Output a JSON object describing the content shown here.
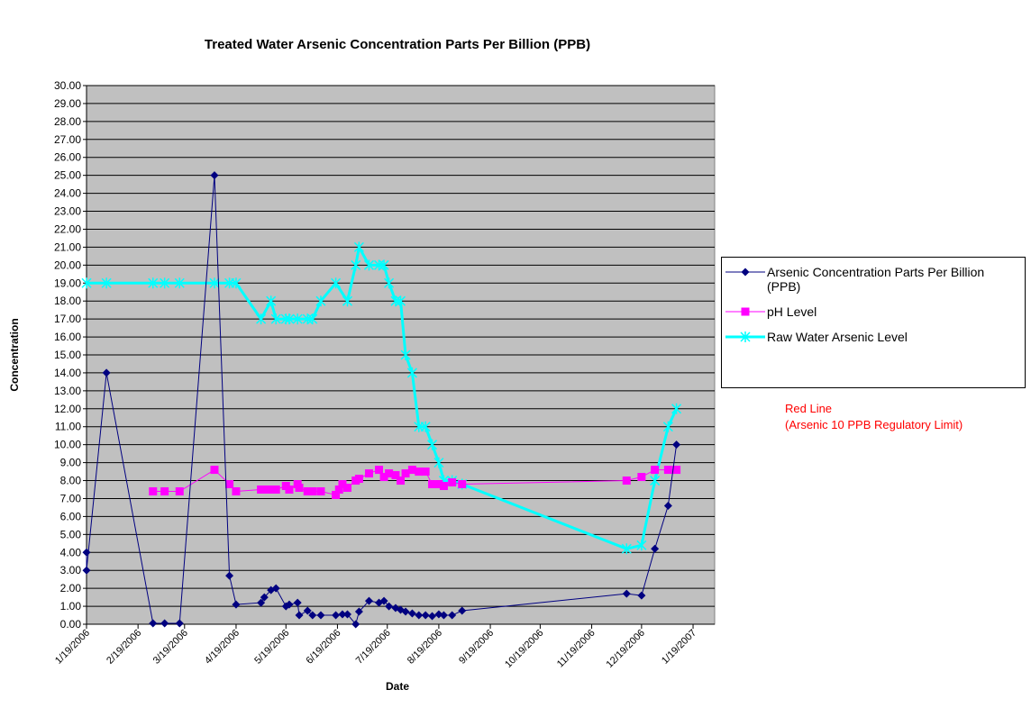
{
  "chart_data": {
    "type": "line",
    "title": "Treated Water Arsenic Concentration Parts Per Billion (PPB)",
    "xlabel": "Date",
    "ylabel": "Concentration",
    "annotations": [
      "Red Line",
      "(Arsenic 10 PPB Regulatory Limit)"
    ],
    "annotation_color": "#ff0000",
    "grid": true,
    "legend": "right",
    "plot_background": "#c0c0c0",
    "xlim": [
      "2006-01-19",
      "2007-02-01"
    ],
    "xticks": [
      {
        "value": "2006-01-19",
        "label": "1/19/2006"
      },
      {
        "value": "2006-02-19",
        "label": "2/19/2006"
      },
      {
        "value": "2006-03-19",
        "label": "3/19/2006"
      },
      {
        "value": "2006-04-19",
        "label": "4/19/2006"
      },
      {
        "value": "2006-05-19",
        "label": "5/19/2006"
      },
      {
        "value": "2006-06-19",
        "label": "6/19/2006"
      },
      {
        "value": "2006-07-19",
        "label": "7/19/2006"
      },
      {
        "value": "2006-08-19",
        "label": "8/19/2006"
      },
      {
        "value": "2006-09-19",
        "label": "9/19/2006"
      },
      {
        "value": "2006-10-19",
        "label": "10/19/2006"
      },
      {
        "value": "2006-11-19",
        "label": "11/19/2006"
      },
      {
        "value": "2006-12-19",
        "label": "12/19/2006"
      },
      {
        "value": "2007-01-19",
        "label": "1/19/2007"
      }
    ],
    "ylim": [
      0,
      30
    ],
    "yticks": [
      {
        "value": 0,
        "label": "0.00"
      },
      {
        "value": 1,
        "label": "1.00"
      },
      {
        "value": 2,
        "label": "2.00"
      },
      {
        "value": 3,
        "label": "3.00"
      },
      {
        "value": 4,
        "label": "4.00"
      },
      {
        "value": 5,
        "label": "5.00"
      },
      {
        "value": 6,
        "label": "6.00"
      },
      {
        "value": 7,
        "label": "7.00"
      },
      {
        "value": 8,
        "label": "8.00"
      },
      {
        "value": 9,
        "label": "9.00"
      },
      {
        "value": 10,
        "label": "10.00"
      },
      {
        "value": 11,
        "label": "11.00"
      },
      {
        "value": 12,
        "label": "12.00"
      },
      {
        "value": 13,
        "label": "13.00"
      },
      {
        "value": 14,
        "label": "14.00"
      },
      {
        "value": 15,
        "label": "15.00"
      },
      {
        "value": 16,
        "label": "16.00"
      },
      {
        "value": 17,
        "label": "17.00"
      },
      {
        "value": 18,
        "label": "18.00"
      },
      {
        "value": 19,
        "label": "19.00"
      },
      {
        "value": 20,
        "label": "20.00"
      },
      {
        "value": 21,
        "label": "21.00"
      },
      {
        "value": 22,
        "label": "22.00"
      },
      {
        "value": 23,
        "label": "23.00"
      },
      {
        "value": 24,
        "label": "24.00"
      },
      {
        "value": 25,
        "label": "25.00"
      },
      {
        "value": 26,
        "label": "26.00"
      },
      {
        "value": 27,
        "label": "27.00"
      },
      {
        "value": 28,
        "label": "28.00"
      },
      {
        "value": 29,
        "label": "29.00"
      },
      {
        "value": 30,
        "label": "30.00"
      }
    ],
    "series": [
      {
        "name": "Arsenic Concentration Parts Per Billion (PPB)",
        "color": "#000080",
        "marker": "diamond",
        "x": [
          "2006-01-19",
          "2006-01-19",
          "2006-01-31",
          "2006-02-28",
          "2006-03-07",
          "2006-03-16",
          "2006-04-06",
          "2006-04-15",
          "2006-04-19",
          "2006-05-04",
          "2006-05-06",
          "2006-05-10",
          "2006-05-13",
          "2006-05-19",
          "2006-05-21",
          "2006-05-26",
          "2006-05-27",
          "2006-06-01",
          "2006-06-04",
          "2006-06-09",
          "2006-06-18",
          "2006-06-22",
          "2006-06-25",
          "2006-06-30",
          "2006-07-02",
          "2006-07-08",
          "2006-07-14",
          "2006-07-17",
          "2006-07-20",
          "2006-07-24",
          "2006-07-27",
          "2006-07-30",
          "2006-08-03",
          "2006-08-07",
          "2006-08-11",
          "2006-08-15",
          "2006-08-19",
          "2006-08-22",
          "2006-08-27",
          "2006-09-02",
          "2006-12-10",
          "2006-12-19",
          "2006-12-27",
          "2007-01-04",
          "2007-01-09"
        ],
        "values": [
          4,
          3,
          14,
          0.05,
          0.05,
          0.05,
          25,
          2.7,
          1.1,
          1.2,
          1.5,
          1.9,
          2.0,
          1.0,
          1.1,
          1.2,
          0.5,
          0.75,
          0.5,
          0.5,
          0.5,
          0.55,
          0.55,
          0,
          0.7,
          1.3,
          1.2,
          1.3,
          1.0,
          0.9,
          0.8,
          0.7,
          0.6,
          0.5,
          0.5,
          0.45,
          0.55,
          0.5,
          0.5,
          0.75,
          1.7,
          1.6,
          4.2,
          6.6,
          10
        ]
      },
      {
        "name": "pH Level",
        "color": "#ff00ff",
        "marker": "square",
        "x": [
          "2006-02-28",
          "2006-03-07",
          "2006-03-16",
          "2006-04-06",
          "2006-04-15",
          "2006-04-19",
          "2006-05-04",
          "2006-05-06",
          "2006-05-10",
          "2006-05-13",
          "2006-05-19",
          "2006-05-21",
          "2006-05-26",
          "2006-05-27",
          "2006-06-01",
          "2006-06-04",
          "2006-06-09",
          "2006-06-18",
          "2006-06-20",
          "2006-06-22",
          "2006-06-25",
          "2006-06-30",
          "2006-07-02",
          "2006-07-08",
          "2006-07-14",
          "2006-07-17",
          "2006-07-20",
          "2006-07-24",
          "2006-07-27",
          "2006-07-30",
          "2006-08-03",
          "2006-08-07",
          "2006-08-11",
          "2006-08-15",
          "2006-08-19",
          "2006-08-22",
          "2006-08-27",
          "2006-09-02",
          "2006-12-10",
          "2006-12-19",
          "2006-12-27",
          "2007-01-04",
          "2007-01-09"
        ],
        "values": [
          7.4,
          7.4,
          7.4,
          8.6,
          7.8,
          7.4,
          7.5,
          7.5,
          7.5,
          7.5,
          7.7,
          7.5,
          7.8,
          7.6,
          7.4,
          7.4,
          7.4,
          7.2,
          7.5,
          7.8,
          7.6,
          8.0,
          8.1,
          8.4,
          8.6,
          8.2,
          8.4,
          8.3,
          8.0,
          8.4,
          8.6,
          8.5,
          8.5,
          7.8,
          7.8,
          7.7,
          7.9,
          7.8,
          8.0,
          8.2,
          8.6,
          8.6,
          8.6
        ]
      },
      {
        "name": "Raw Water Arsenic Level",
        "color": "#00ffff",
        "marker": "star",
        "x": [
          "2006-01-19",
          "2006-01-31",
          "2006-02-28",
          "2006-03-07",
          "2006-03-16",
          "2006-04-06",
          "2006-04-15",
          "2006-04-19",
          "2006-05-04",
          "2006-05-10",
          "2006-05-13",
          "2006-05-19",
          "2006-05-21",
          "2006-05-26",
          "2006-06-01",
          "2006-06-04",
          "2006-06-09",
          "2006-06-18",
          "2006-06-25",
          "2006-06-30",
          "2006-07-02",
          "2006-07-08",
          "2006-07-14",
          "2006-07-17",
          "2006-07-20",
          "2006-07-24",
          "2006-07-27",
          "2006-07-30",
          "2006-08-03",
          "2006-08-07",
          "2006-08-11",
          "2006-08-15",
          "2006-08-19",
          "2006-08-22",
          "2006-08-27",
          "2006-09-02",
          "2006-12-10",
          "2006-12-19",
          "2006-12-27",
          "2007-01-04",
          "2007-01-09"
        ],
        "values": [
          19,
          19,
          19,
          19,
          19,
          19,
          19,
          19,
          17,
          18,
          17,
          17,
          17,
          17,
          17,
          17,
          18,
          19,
          18,
          20,
          21,
          20,
          20,
          20,
          19,
          18,
          18,
          15,
          14,
          11,
          11,
          10,
          9,
          8,
          8,
          7.8,
          4.2,
          4.4,
          8,
          11,
          12
        ]
      }
    ]
  }
}
